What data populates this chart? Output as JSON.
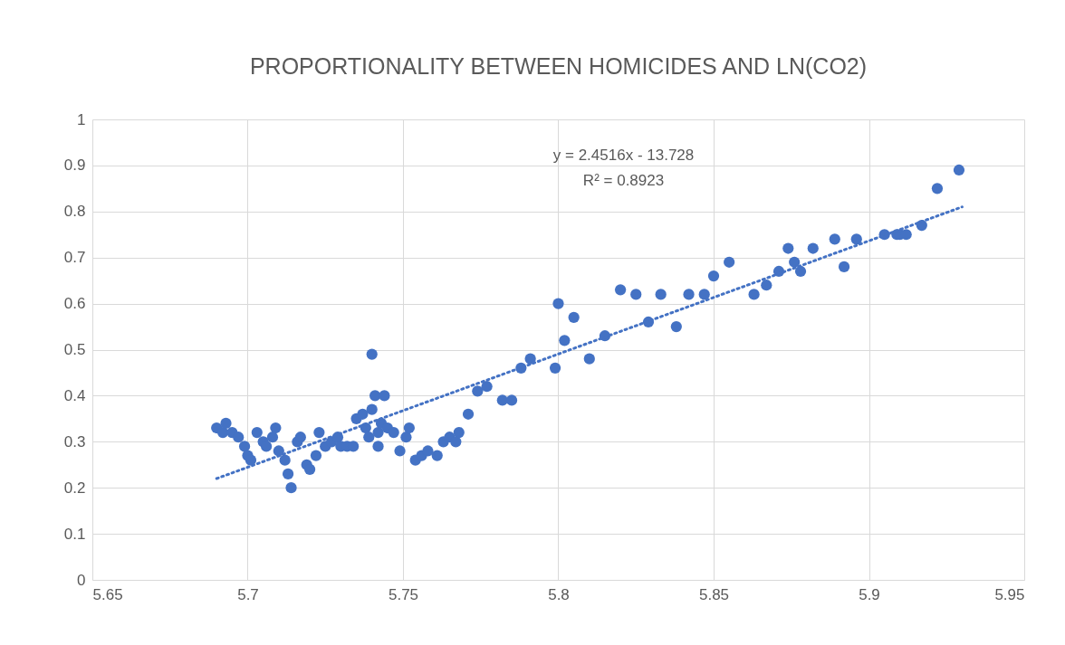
{
  "chart_data": {
    "type": "scatter",
    "title": "PROPORTIONALITY BETWEEN HOMICIDES AND LN(CO2)",
    "annotations": [
      "y = 2.4516x - 13.728",
      "R² = 0.8923"
    ],
    "x": [
      5.69,
      5.692,
      5.693,
      5.695,
      5.697,
      5.699,
      5.7,
      5.701,
      5.703,
      5.705,
      5.706,
      5.708,
      5.709,
      5.71,
      5.712,
      5.713,
      5.714,
      5.716,
      5.717,
      5.719,
      5.72,
      5.722,
      5.723,
      5.725,
      5.727,
      5.729,
      5.73,
      5.732,
      5.734,
      5.735,
      5.737,
      5.738,
      5.739,
      5.74,
      5.74,
      5.741,
      5.742,
      5.742,
      5.743,
      5.744,
      5.745,
      5.747,
      5.749,
      5.751,
      5.752,
      5.754,
      5.756,
      5.758,
      5.761,
      5.763,
      5.765,
      5.767,
      5.768,
      5.771,
      5.774,
      5.777,
      5.782,
      5.785,
      5.788,
      5.791,
      5.799,
      5.8,
      5.802,
      5.805,
      5.81,
      5.815,
      5.82,
      5.825,
      5.829,
      5.833,
      5.838,
      5.842,
      5.847,
      5.85,
      5.855,
      5.863,
      5.867,
      5.871,
      5.874,
      5.876,
      5.878,
      5.882,
      5.889,
      5.892,
      5.896,
      5.905,
      5.909,
      5.91,
      5.912,
      5.917,
      5.922,
      5.929
    ],
    "series": [
      {
        "color": "#4472c4",
        "values": [
          0.33,
          0.32,
          0.34,
          0.32,
          0.31,
          0.29,
          0.27,
          0.26,
          0.32,
          0.3,
          0.29,
          0.31,
          0.33,
          0.28,
          0.26,
          0.23,
          0.2,
          0.3,
          0.31,
          0.25,
          0.24,
          0.27,
          0.32,
          0.29,
          0.3,
          0.31,
          0.29,
          0.29,
          0.29,
          0.35,
          0.36,
          0.33,
          0.31,
          0.49,
          0.37,
          0.4,
          0.29,
          0.32,
          0.34,
          0.4,
          0.33,
          0.32,
          0.28,
          0.31,
          0.33,
          0.26,
          0.27,
          0.28,
          0.27,
          0.3,
          0.31,
          0.3,
          0.32,
          0.36,
          0.41,
          0.42,
          0.39,
          0.39,
          0.46,
          0.48,
          0.46,
          0.6,
          0.52,
          0.57,
          0.48,
          0.53,
          0.63,
          0.62,
          0.56,
          0.62,
          0.55,
          0.62,
          0.62,
          0.66,
          0.69,
          0.62,
          0.64,
          0.67,
          0.72,
          0.69,
          0.67,
          0.72,
          0.74,
          0.68,
          0.74,
          0.75,
          0.75,
          0.75,
          0.75,
          0.77,
          0.85,
          0.89
        ]
      },
      {
        "type": "line",
        "color": "#4472c4",
        "line_style": "dotted",
        "marker": "none",
        "x": [
          5.69,
          5.93
        ],
        "values": [
          0.22,
          0.81
        ]
      }
    ],
    "xlim": [
      5.65,
      5.95
    ],
    "xticks": [
      5.65,
      5.7,
      5.75,
      5.8,
      5.85,
      5.9,
      5.95
    ],
    "ylim": [
      0,
      1
    ],
    "yticks": [
      0,
      0.1,
      0.2,
      0.3,
      0.4,
      0.5,
      0.6,
      0.7,
      0.8,
      0.9,
      1
    ],
    "grid": true,
    "marker": "circle"
  }
}
